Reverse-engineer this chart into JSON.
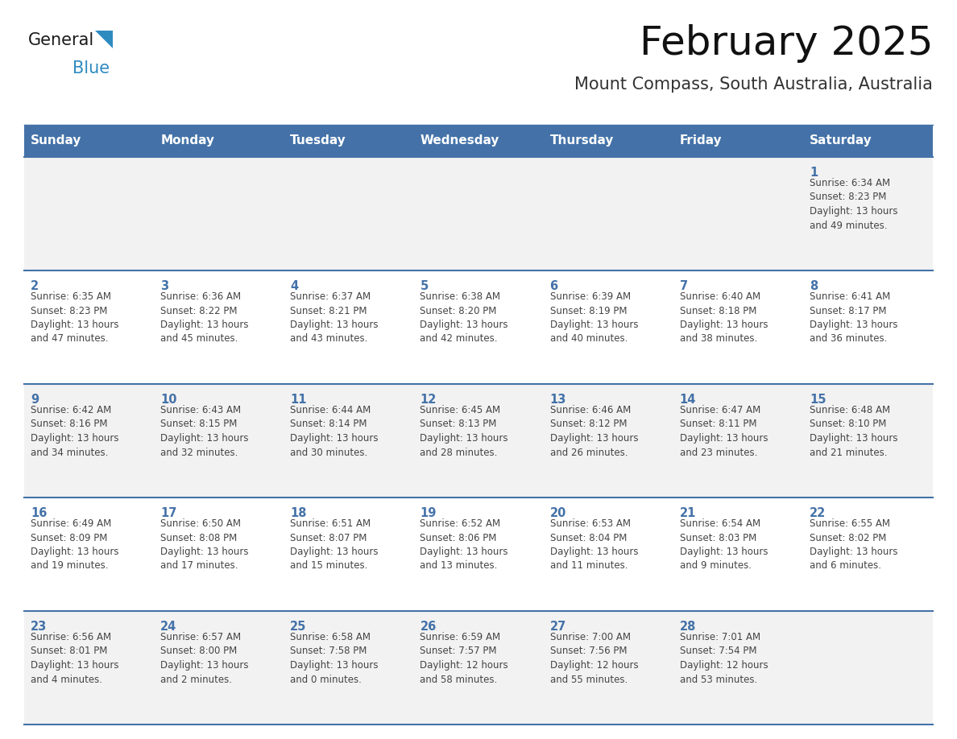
{
  "title": "February 2025",
  "subtitle": "Mount Compass, South Australia, Australia",
  "header_bg_color": "#4472a8",
  "header_text_color": "#ffffff",
  "cell_bg_odd": "#f2f2f2",
  "cell_bg_even": "#ffffff",
  "day_number_color": "#4472a8",
  "cell_text_color": "#444444",
  "border_color": "#4472a8",
  "divider_color": "#4472a8",
  "days_of_week": [
    "Sunday",
    "Monday",
    "Tuesday",
    "Wednesday",
    "Thursday",
    "Friday",
    "Saturday"
  ],
  "weeks": [
    [
      {
        "day": null,
        "info": null
      },
      {
        "day": null,
        "info": null
      },
      {
        "day": null,
        "info": null
      },
      {
        "day": null,
        "info": null
      },
      {
        "day": null,
        "info": null
      },
      {
        "day": null,
        "info": null
      },
      {
        "day": "1",
        "info": "Sunrise: 6:34 AM\nSunset: 8:23 PM\nDaylight: 13 hours\nand 49 minutes."
      }
    ],
    [
      {
        "day": "2",
        "info": "Sunrise: 6:35 AM\nSunset: 8:23 PM\nDaylight: 13 hours\nand 47 minutes."
      },
      {
        "day": "3",
        "info": "Sunrise: 6:36 AM\nSunset: 8:22 PM\nDaylight: 13 hours\nand 45 minutes."
      },
      {
        "day": "4",
        "info": "Sunrise: 6:37 AM\nSunset: 8:21 PM\nDaylight: 13 hours\nand 43 minutes."
      },
      {
        "day": "5",
        "info": "Sunrise: 6:38 AM\nSunset: 8:20 PM\nDaylight: 13 hours\nand 42 minutes."
      },
      {
        "day": "6",
        "info": "Sunrise: 6:39 AM\nSunset: 8:19 PM\nDaylight: 13 hours\nand 40 minutes."
      },
      {
        "day": "7",
        "info": "Sunrise: 6:40 AM\nSunset: 8:18 PM\nDaylight: 13 hours\nand 38 minutes."
      },
      {
        "day": "8",
        "info": "Sunrise: 6:41 AM\nSunset: 8:17 PM\nDaylight: 13 hours\nand 36 minutes."
      }
    ],
    [
      {
        "day": "9",
        "info": "Sunrise: 6:42 AM\nSunset: 8:16 PM\nDaylight: 13 hours\nand 34 minutes."
      },
      {
        "day": "10",
        "info": "Sunrise: 6:43 AM\nSunset: 8:15 PM\nDaylight: 13 hours\nand 32 minutes."
      },
      {
        "day": "11",
        "info": "Sunrise: 6:44 AM\nSunset: 8:14 PM\nDaylight: 13 hours\nand 30 minutes."
      },
      {
        "day": "12",
        "info": "Sunrise: 6:45 AM\nSunset: 8:13 PM\nDaylight: 13 hours\nand 28 minutes."
      },
      {
        "day": "13",
        "info": "Sunrise: 6:46 AM\nSunset: 8:12 PM\nDaylight: 13 hours\nand 26 minutes."
      },
      {
        "day": "14",
        "info": "Sunrise: 6:47 AM\nSunset: 8:11 PM\nDaylight: 13 hours\nand 23 minutes."
      },
      {
        "day": "15",
        "info": "Sunrise: 6:48 AM\nSunset: 8:10 PM\nDaylight: 13 hours\nand 21 minutes."
      }
    ],
    [
      {
        "day": "16",
        "info": "Sunrise: 6:49 AM\nSunset: 8:09 PM\nDaylight: 13 hours\nand 19 minutes."
      },
      {
        "day": "17",
        "info": "Sunrise: 6:50 AM\nSunset: 8:08 PM\nDaylight: 13 hours\nand 17 minutes."
      },
      {
        "day": "18",
        "info": "Sunrise: 6:51 AM\nSunset: 8:07 PM\nDaylight: 13 hours\nand 15 minutes."
      },
      {
        "day": "19",
        "info": "Sunrise: 6:52 AM\nSunset: 8:06 PM\nDaylight: 13 hours\nand 13 minutes."
      },
      {
        "day": "20",
        "info": "Sunrise: 6:53 AM\nSunset: 8:04 PM\nDaylight: 13 hours\nand 11 minutes."
      },
      {
        "day": "21",
        "info": "Sunrise: 6:54 AM\nSunset: 8:03 PM\nDaylight: 13 hours\nand 9 minutes."
      },
      {
        "day": "22",
        "info": "Sunrise: 6:55 AM\nSunset: 8:02 PM\nDaylight: 13 hours\nand 6 minutes."
      }
    ],
    [
      {
        "day": "23",
        "info": "Sunrise: 6:56 AM\nSunset: 8:01 PM\nDaylight: 13 hours\nand 4 minutes."
      },
      {
        "day": "24",
        "info": "Sunrise: 6:57 AM\nSunset: 8:00 PM\nDaylight: 13 hours\nand 2 minutes."
      },
      {
        "day": "25",
        "info": "Sunrise: 6:58 AM\nSunset: 7:58 PM\nDaylight: 13 hours\nand 0 minutes."
      },
      {
        "day": "26",
        "info": "Sunrise: 6:59 AM\nSunset: 7:57 PM\nDaylight: 12 hours\nand 58 minutes."
      },
      {
        "day": "27",
        "info": "Sunrise: 7:00 AM\nSunset: 7:56 PM\nDaylight: 12 hours\nand 55 minutes."
      },
      {
        "day": "28",
        "info": "Sunrise: 7:01 AM\nSunset: 7:54 PM\nDaylight: 12 hours\nand 53 minutes."
      },
      {
        "day": null,
        "info": null
      }
    ]
  ],
  "logo_general_color": "#1a1a1a",
  "logo_blue_color": "#2e8bc0",
  "logo_triangle_color": "#2e8bc0"
}
